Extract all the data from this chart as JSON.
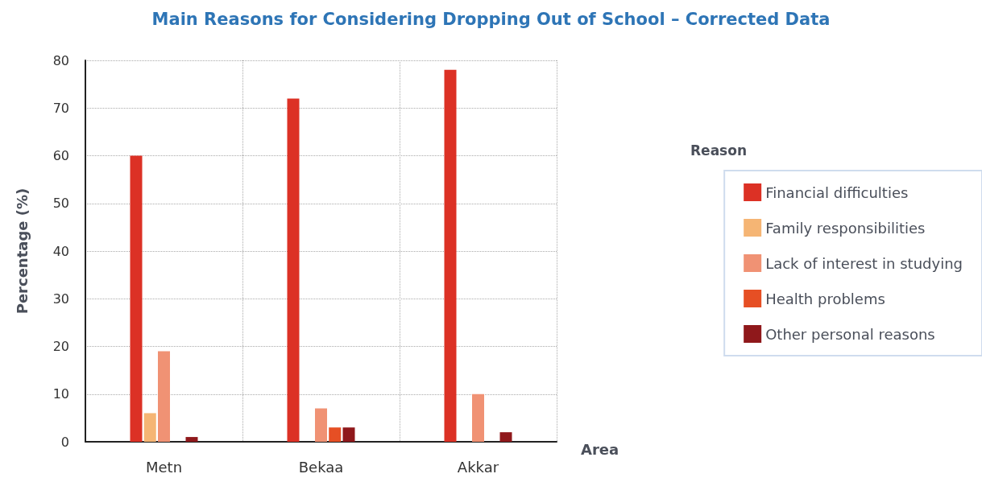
{
  "chart_data": {
    "type": "bar",
    "title": "Main Reasons for Considering Dropping Out of School – Corrected Data",
    "xlabel": "Area",
    "ylabel": "Percentage (%)",
    "legend_title": "Reason",
    "categories": [
      "Metn",
      "Bekaa",
      "Akkar"
    ],
    "series": [
      {
        "name": "Financial difficulties",
        "color": "#dc3125",
        "values": [
          60,
          72,
          78
        ]
      },
      {
        "name": "Family responsibilities",
        "color": "#f5b574",
        "values": [
          6,
          0,
          0
        ]
      },
      {
        "name": "Lack of interest in studying",
        "color": "#f09274",
        "values": [
          19,
          7,
          10
        ]
      },
      {
        "name": "Health problems",
        "color": "#e64f24",
        "values": [
          0,
          3,
          0
        ]
      },
      {
        "name": "Other personal reasons",
        "color": "#8f181b",
        "values": [
          1,
          3,
          2
        ]
      }
    ],
    "ylim": [
      0,
      80
    ],
    "yticks": [
      0,
      10,
      20,
      30,
      40,
      50,
      60,
      70,
      80
    ],
    "grid": true,
    "legend": "right"
  }
}
